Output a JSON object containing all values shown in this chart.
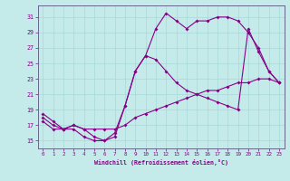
{
  "xlabel": "Windchill (Refroidissement éolien,°C)",
  "xlim": [
    -0.5,
    23.5
  ],
  "ylim": [
    14.0,
    32.5
  ],
  "xticks": [
    0,
    1,
    2,
    3,
    4,
    5,
    6,
    7,
    8,
    9,
    10,
    11,
    12,
    13,
    14,
    15,
    16,
    17,
    18,
    19,
    20,
    21,
    22,
    23
  ],
  "yticks": [
    15,
    17,
    19,
    21,
    23,
    25,
    27,
    29,
    31
  ],
  "background_color": "#c5eaea",
  "grid_color": "#a8d8d8",
  "line_color": "#880088",
  "line1_x": [
    0,
    1,
    2,
    3,
    4,
    5,
    6,
    7,
    8,
    9,
    10,
    11,
    12,
    13,
    14,
    15,
    16,
    17,
    18,
    19,
    20,
    21,
    22,
    23
  ],
  "line1_y": [
    18.5,
    17.5,
    16.5,
    16.5,
    15.5,
    15.0,
    15.0,
    15.5,
    19.5,
    24.0,
    26.0,
    29.5,
    31.5,
    30.5,
    29.5,
    30.5,
    30.5,
    31.0,
    31.0,
    30.5,
    29.0,
    27.0,
    24.0,
    22.5
  ],
  "line2_x": [
    0,
    1,
    2,
    3,
    4,
    5,
    6,
    7,
    8,
    9,
    10,
    11,
    12,
    13,
    14,
    15,
    16,
    17,
    18,
    19,
    20,
    21,
    22,
    23
  ],
  "line2_y": [
    18.0,
    17.0,
    16.5,
    17.0,
    16.5,
    15.5,
    15.0,
    16.0,
    19.5,
    24.0,
    26.0,
    25.5,
    24.0,
    22.5,
    21.5,
    21.0,
    20.5,
    20.0,
    19.5,
    19.0,
    29.5,
    26.5,
    24.0,
    22.5
  ],
  "line3_x": [
    0,
    1,
    2,
    3,
    4,
    5,
    6,
    7,
    8,
    9,
    10,
    11,
    12,
    13,
    14,
    15,
    16,
    17,
    18,
    19,
    20,
    21,
    22,
    23
  ],
  "line3_y": [
    17.5,
    16.5,
    16.5,
    17.0,
    16.5,
    16.5,
    16.5,
    16.5,
    17.0,
    18.0,
    18.5,
    19.0,
    19.5,
    20.0,
    20.5,
    21.0,
    21.5,
    21.5,
    22.0,
    22.5,
    22.5,
    23.0,
    23.0,
    22.5
  ]
}
